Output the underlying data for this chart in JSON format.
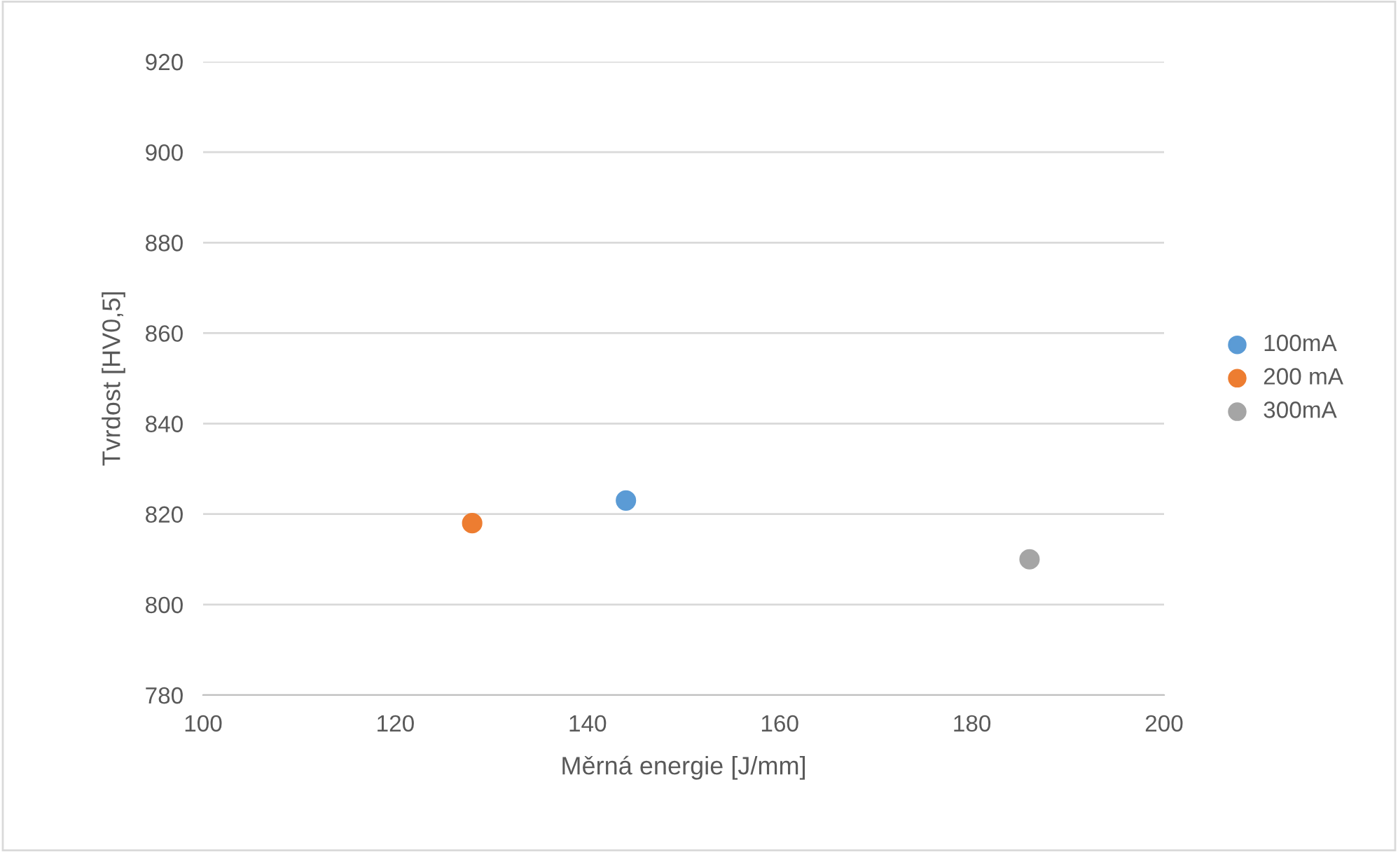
{
  "chart_data": {
    "type": "scatter",
    "xlabel": "Měrná energie [J/mm]",
    "ylabel": "Tvrdost [HV0,5]",
    "series": [
      {
        "name": "100mA",
        "color": "#5b9bd5",
        "x": [
          144
        ],
        "values": [
          823
        ]
      },
      {
        "name": "200 mA",
        "color": "#ed7d31",
        "x": [
          128
        ],
        "values": [
          818
        ]
      },
      {
        "name": "300mA",
        "color": "#a5a5a5",
        "x": [
          186
        ],
        "values": [
          810
        ]
      }
    ],
    "xlim": [
      100,
      200
    ],
    "xticks": [
      100,
      120,
      140,
      160,
      180,
      200
    ],
    "ylim": [
      780,
      920
    ],
    "yticks": [
      780,
      800,
      820,
      840,
      860,
      880,
      900,
      920
    ],
    "grid": "y",
    "legend": "right",
    "marker": "circle"
  }
}
